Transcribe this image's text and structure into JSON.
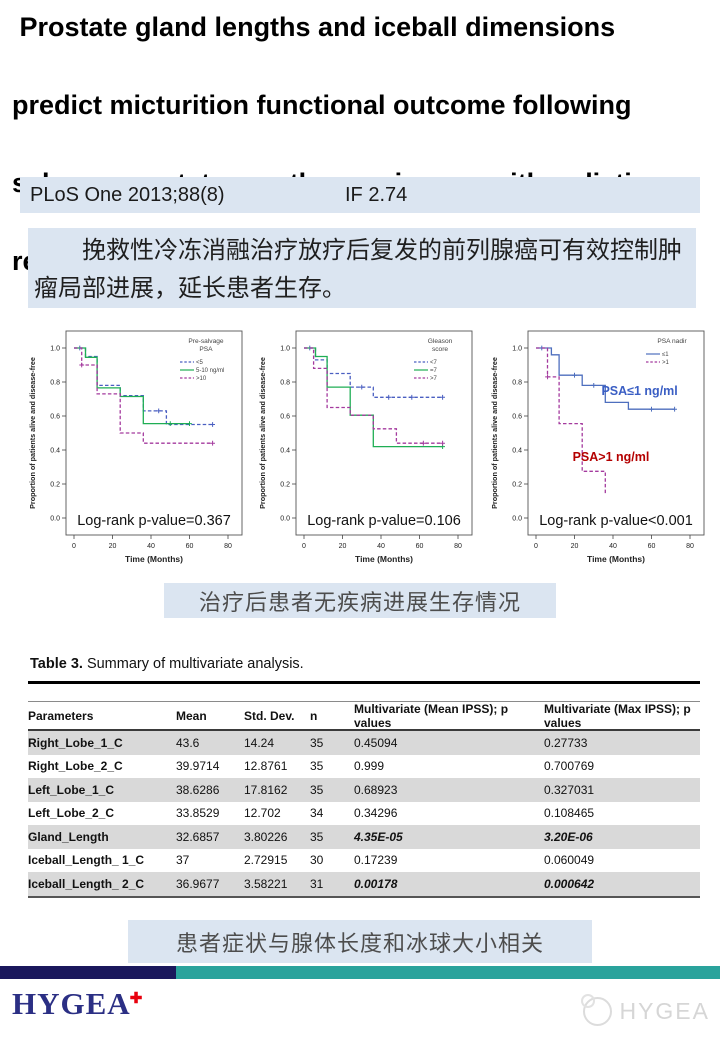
{
  "header": {
    "title_lines": [
      " Prostate gland lengths and iceball dimensions",
      "predict micturition functional outcome following",
      "salvage prostate cryotherapy in men with radiation",
      "recurrent prostate cancer."
    ]
  },
  "journal": {
    "citation": "PLoS One 2013;88(8)",
    "impact_factor": "IF 2.74"
  },
  "summary_cn": "挽救性冷冻消融治疗放疗后复发的前列腺癌可有效控制肿瘤局部进展，延长患者生存。",
  "figure_caption_cn": "治疗后患者无疾病进展生存情况",
  "table_caption_cn": "患者症状与腺体长度和冰球大小相关",
  "chart_data": [
    {
      "type": "line",
      "subtype": "kaplan-meier-step",
      "title": "",
      "xlabel": "Time (Months)",
      "ylabel": "Proportion of patients alive and disease-free",
      "xlim": [
        0,
        80
      ],
      "ylim": [
        0.0,
        1.0
      ],
      "xticks": [
        0,
        20,
        40,
        60,
        80
      ],
      "yticks": [
        0.0,
        0.2,
        0.4,
        0.6,
        0.8,
        1.0
      ],
      "legend_title_lines": [
        "Pre-salvage",
        "PSA"
      ],
      "legend_x": 146,
      "pvalue_label": "Log-rank p-value=0.367",
      "series": [
        {
          "name": "<5",
          "color": "#4a5fc1",
          "dashed": true,
          "points": [
            [
              0,
              1.0
            ],
            [
              6,
              0.95
            ],
            [
              12,
              0.78
            ],
            [
              24,
              0.72
            ],
            [
              36,
              0.63
            ],
            [
              48,
              0.55
            ],
            [
              72,
              0.55
            ]
          ],
          "censors": [
            [
              3,
              1.0
            ],
            [
              44,
              0.63
            ],
            [
              72,
              0.55
            ]
          ]
        },
        {
          "name": "5-10  ng/ml",
          "color": "#1fae54",
          "dashed": false,
          "points": [
            [
              0,
              1.0
            ],
            [
              6,
              0.945
            ],
            [
              12,
              0.765
            ],
            [
              24,
              0.715
            ],
            [
              36,
              0.555
            ],
            [
              60,
              0.555
            ]
          ],
          "censors": [
            [
              50,
              0.555
            ],
            [
              60,
              0.555
            ]
          ]
        },
        {
          "name": ">10",
          "color": "#a43a9e",
          "dashed": true,
          "points": [
            [
              0,
              1.0
            ],
            [
              4,
              0.9
            ],
            [
              12,
              0.73
            ],
            [
              24,
              0.5
            ],
            [
              36,
              0.44
            ],
            [
              72,
              0.44
            ]
          ],
          "censors": [
            [
              4,
              0.9
            ],
            [
              72,
              0.44
            ]
          ]
        }
      ],
      "annotations": []
    },
    {
      "type": "line",
      "subtype": "kaplan-meier-step",
      "title": "",
      "xlabel": "Time (Months)",
      "ylabel": "Proportion of patients alive and disease-free",
      "xlim": [
        0,
        80
      ],
      "ylim": [
        0.0,
        1.0
      ],
      "xticks": [
        0,
        20,
        40,
        60,
        80
      ],
      "yticks": [
        0.0,
        0.2,
        0.4,
        0.6,
        0.8,
        1.0
      ],
      "legend_title_lines": [
        "Gleason",
        "score"
      ],
      "legend_x": 150,
      "pvalue_label": "Log-rank p-value=0.106",
      "series": [
        {
          "name": "<7",
          "color": "#4a5fc1",
          "dashed": true,
          "points": [
            [
              0,
              1.0
            ],
            [
              6,
              0.93
            ],
            [
              12,
              0.85
            ],
            [
              24,
              0.77
            ],
            [
              36,
              0.71
            ],
            [
              72,
              0.71
            ]
          ],
          "censors": [
            [
              3,
              1.0
            ],
            [
              30,
              0.77
            ],
            [
              44,
              0.71
            ],
            [
              56,
              0.71
            ],
            [
              72,
              0.71
            ]
          ]
        },
        {
          "name": "=7",
          "color": "#1fae54",
          "dashed": false,
          "points": [
            [
              0,
              1.0
            ],
            [
              6,
              0.95
            ],
            [
              12,
              0.77
            ],
            [
              24,
              0.605
            ],
            [
              36,
              0.42
            ],
            [
              72,
              0.42
            ]
          ],
          "censors": [
            [
              72,
              0.42
            ]
          ]
        },
        {
          "name": ">7",
          "color": "#a43a9e",
          "dashed": true,
          "points": [
            [
              0,
              1.0
            ],
            [
              5,
              0.88
            ],
            [
              12,
              0.65
            ],
            [
              24,
              0.605
            ],
            [
              36,
              0.525
            ],
            [
              48,
              0.44
            ],
            [
              72,
              0.44
            ]
          ],
          "censors": [
            [
              62,
              0.44
            ],
            [
              72,
              0.44
            ]
          ]
        }
      ],
      "annotations": []
    },
    {
      "type": "line",
      "subtype": "kaplan-meier-step",
      "title": "",
      "xlabel": "Time (Months)",
      "ylabel": "Proportion of patients alive and disease-free",
      "xlim": [
        0,
        80
      ],
      "ylim": [
        0.0,
        1.0
      ],
      "xticks": [
        0,
        20,
        40,
        60,
        80
      ],
      "yticks": [
        0.0,
        0.2,
        0.4,
        0.6,
        0.8,
        1.0
      ],
      "legend_title_lines": [
        "PSA nadir"
      ],
      "legend_x": 150,
      "pvalue_label": "Log-rank p-value<0.001",
      "series": [
        {
          "name": "≤1",
          "color": "#4e6fbe",
          "dashed": false,
          "points": [
            [
              0,
              1.0
            ],
            [
              8,
              0.96
            ],
            [
              12,
              0.84
            ],
            [
              24,
              0.78
            ],
            [
              36,
              0.68
            ],
            [
              48,
              0.64
            ],
            [
              72,
              0.64
            ]
          ],
          "censors": [
            [
              3,
              1.0
            ],
            [
              20,
              0.84
            ],
            [
              30,
              0.78
            ],
            [
              60,
              0.64
            ],
            [
              72,
              0.64
            ]
          ]
        },
        {
          "name": ">1",
          "color": "#a43a9e",
          "dashed": true,
          "points": [
            [
              0,
              1.0
            ],
            [
              6,
              0.83
            ],
            [
              12,
              0.555
            ],
            [
              24,
              0.275
            ],
            [
              36,
              0.14
            ]
          ],
          "censors": [
            [
              6,
              0.83
            ]
          ]
        }
      ],
      "annotations": [
        {
          "text": "PSA≤1 ng/ml",
          "x": 34,
          "y": 0.725,
          "color": "#3a5ec4"
        },
        {
          "text": "PSA>1 ng/ml",
          "x": 19,
          "y": 0.335,
          "color": "#b40000"
        }
      ]
    }
  ],
  "table": {
    "title_bold": "Table 3.",
    "title_rest": " Summary of multivariate analysis.",
    "columns": [
      "Parameters",
      "Mean",
      "Std. Dev.",
      "n",
      "Multivariate (Mean IPSS); p values",
      "Multivariate (Max IPSS); p values"
    ],
    "rows": [
      {
        "cells": [
          "Right_Lobe_1_C",
          "43.6",
          "14.24",
          "35",
          "0.45094",
          "0.27733"
        ],
        "shaded": true,
        "emph": false
      },
      {
        "cells": [
          "Right_Lobe_2_C",
          "39.9714",
          "12.8761",
          "35",
          "0.999",
          "0.700769"
        ],
        "shaded": false,
        "emph": false
      },
      {
        "cells": [
          "Left_Lobe_1_C",
          "38.6286",
          "17.8162",
          "35",
          "0.68923",
          "0.327031"
        ],
        "shaded": true,
        "emph": false
      },
      {
        "cells": [
          "Left_Lobe_2_C",
          "33.8529",
          "12.702",
          "34",
          "0.34296",
          "0.108465"
        ],
        "shaded": false,
        "emph": false
      },
      {
        "cells": [
          "Gland_Length",
          "32.6857",
          "3.80226",
          "35",
          "4.35E-05",
          "3.20E-06"
        ],
        "shaded": true,
        "emph": true
      },
      {
        "cells": [
          "Iceball_Length_ 1_C",
          "37",
          "2.72915",
          "30",
          "0.17239",
          "0.060049"
        ],
        "shaded": false,
        "emph": false
      },
      {
        "cells": [
          "Iceball_Length_ 2_C",
          "36.9677",
          "3.58221",
          "31",
          "0.00178",
          "0.000642"
        ],
        "shaded": true,
        "emph": true
      }
    ]
  },
  "footer": {
    "logo_text": "HYGEA",
    "logo_cross": "✚",
    "watermark_text": "HYGEA"
  },
  "colors": {
    "light_blue_bg": "#dbe5f1",
    "table_shade": "#d9d9d9",
    "footer_navy": "#1a185c",
    "footer_teal": "#2aa39c",
    "logo_navy": "#2b2f84",
    "logo_red": "#e8000d",
    "km_blue": "#4a5fc1",
    "km_green": "#1fae54",
    "km_purple": "#a43a9e"
  }
}
